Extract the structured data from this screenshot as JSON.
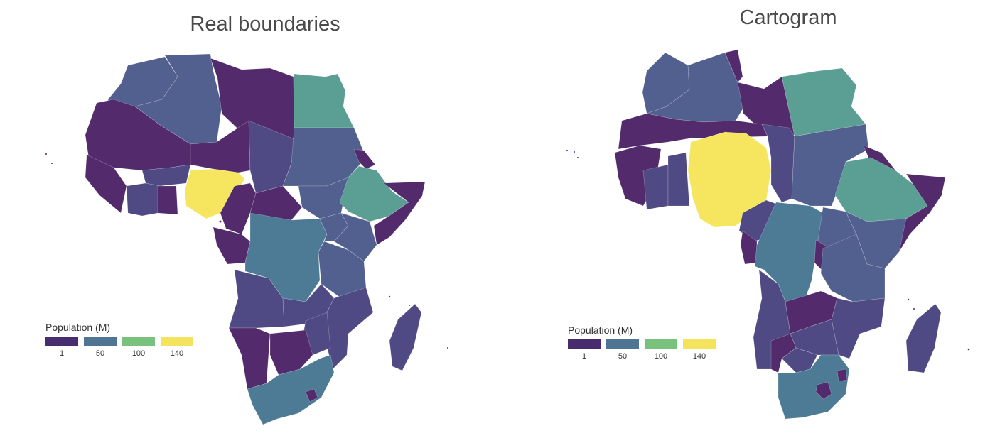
{
  "panels": [
    {
      "title": "Real boundaries"
    },
    {
      "title": "Cartogram"
    }
  ],
  "legend": {
    "title": "Population (M)",
    "items": [
      {
        "label": "1",
        "color": "#472d6e"
      },
      {
        "label": "50",
        "color": "#4f7593"
      },
      {
        "label": "100",
        "color": "#79c27e"
      },
      {
        "label": "140",
        "color": "#f3e35d"
      }
    ]
  },
  "colors": {
    "dark": "#532a6c",
    "mid_purple": "#4f4a84",
    "blue": "#52608f",
    "teal_blue": "#4d7b95",
    "green_teal": "#5a9e94",
    "yellow": "#f6e55f"
  }
}
